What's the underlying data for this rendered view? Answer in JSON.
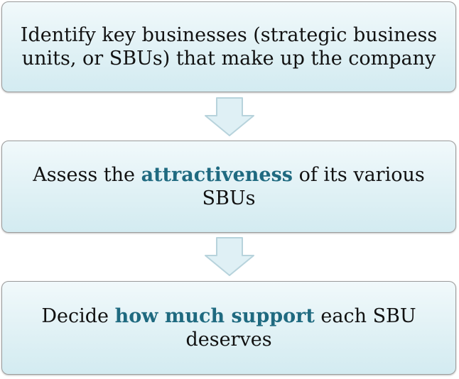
{
  "steps": [
    {
      "line1": "Identify key businesses (strategic business",
      "line2": "units, or SBUs) that make up the company"
    },
    {
      "line1_before": "Assess the ",
      "line1_highlight": "attractiveness",
      "line1_after": " of its various",
      "line2": "SBUs"
    },
    {
      "line1_before": "Decide ",
      "line1_highlight": "how much support",
      "line1_after": " each SBU",
      "line2": "deserves"
    }
  ],
  "colors": {
    "box_fill": "#e0f1f5",
    "box_border": "#9c9c9c",
    "highlight_text": "#1f6a80",
    "arrow_fill": "#dff0f5",
    "arrow_border": "#b7d3dc"
  }
}
